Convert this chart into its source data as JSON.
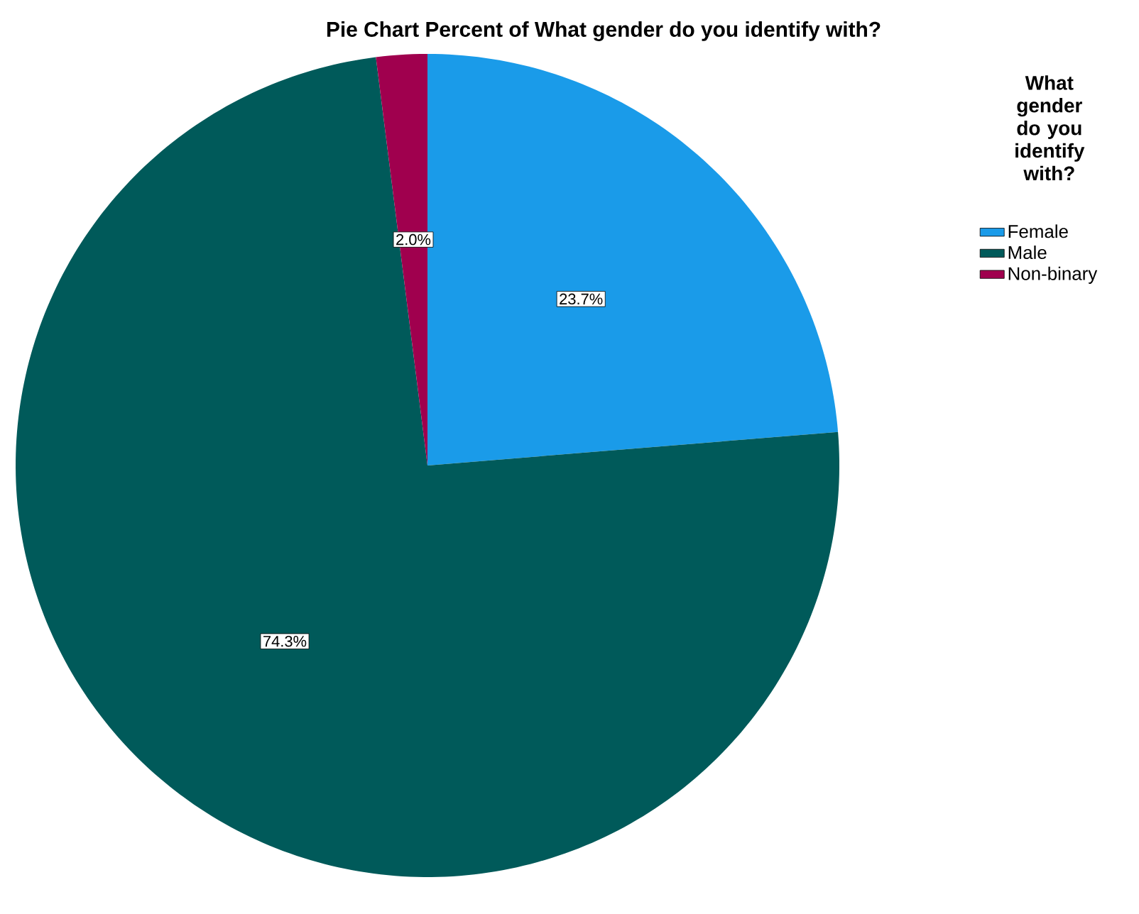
{
  "chart_data": {
    "type": "pie",
    "title": "Pie Chart Percent of What gender do you identify with?",
    "legend_title": "What gender do you identify with?",
    "categories": [
      "Female",
      "Male",
      "Non-binary"
    ],
    "values": [
      23.7,
      74.3,
      2.0
    ],
    "colors": [
      "#1a9be9",
      "#005a5a",
      "#a0004e"
    ],
    "value_labels": [
      "23.7%",
      "74.3%",
      "2.0%"
    ],
    "legend": "right"
  }
}
